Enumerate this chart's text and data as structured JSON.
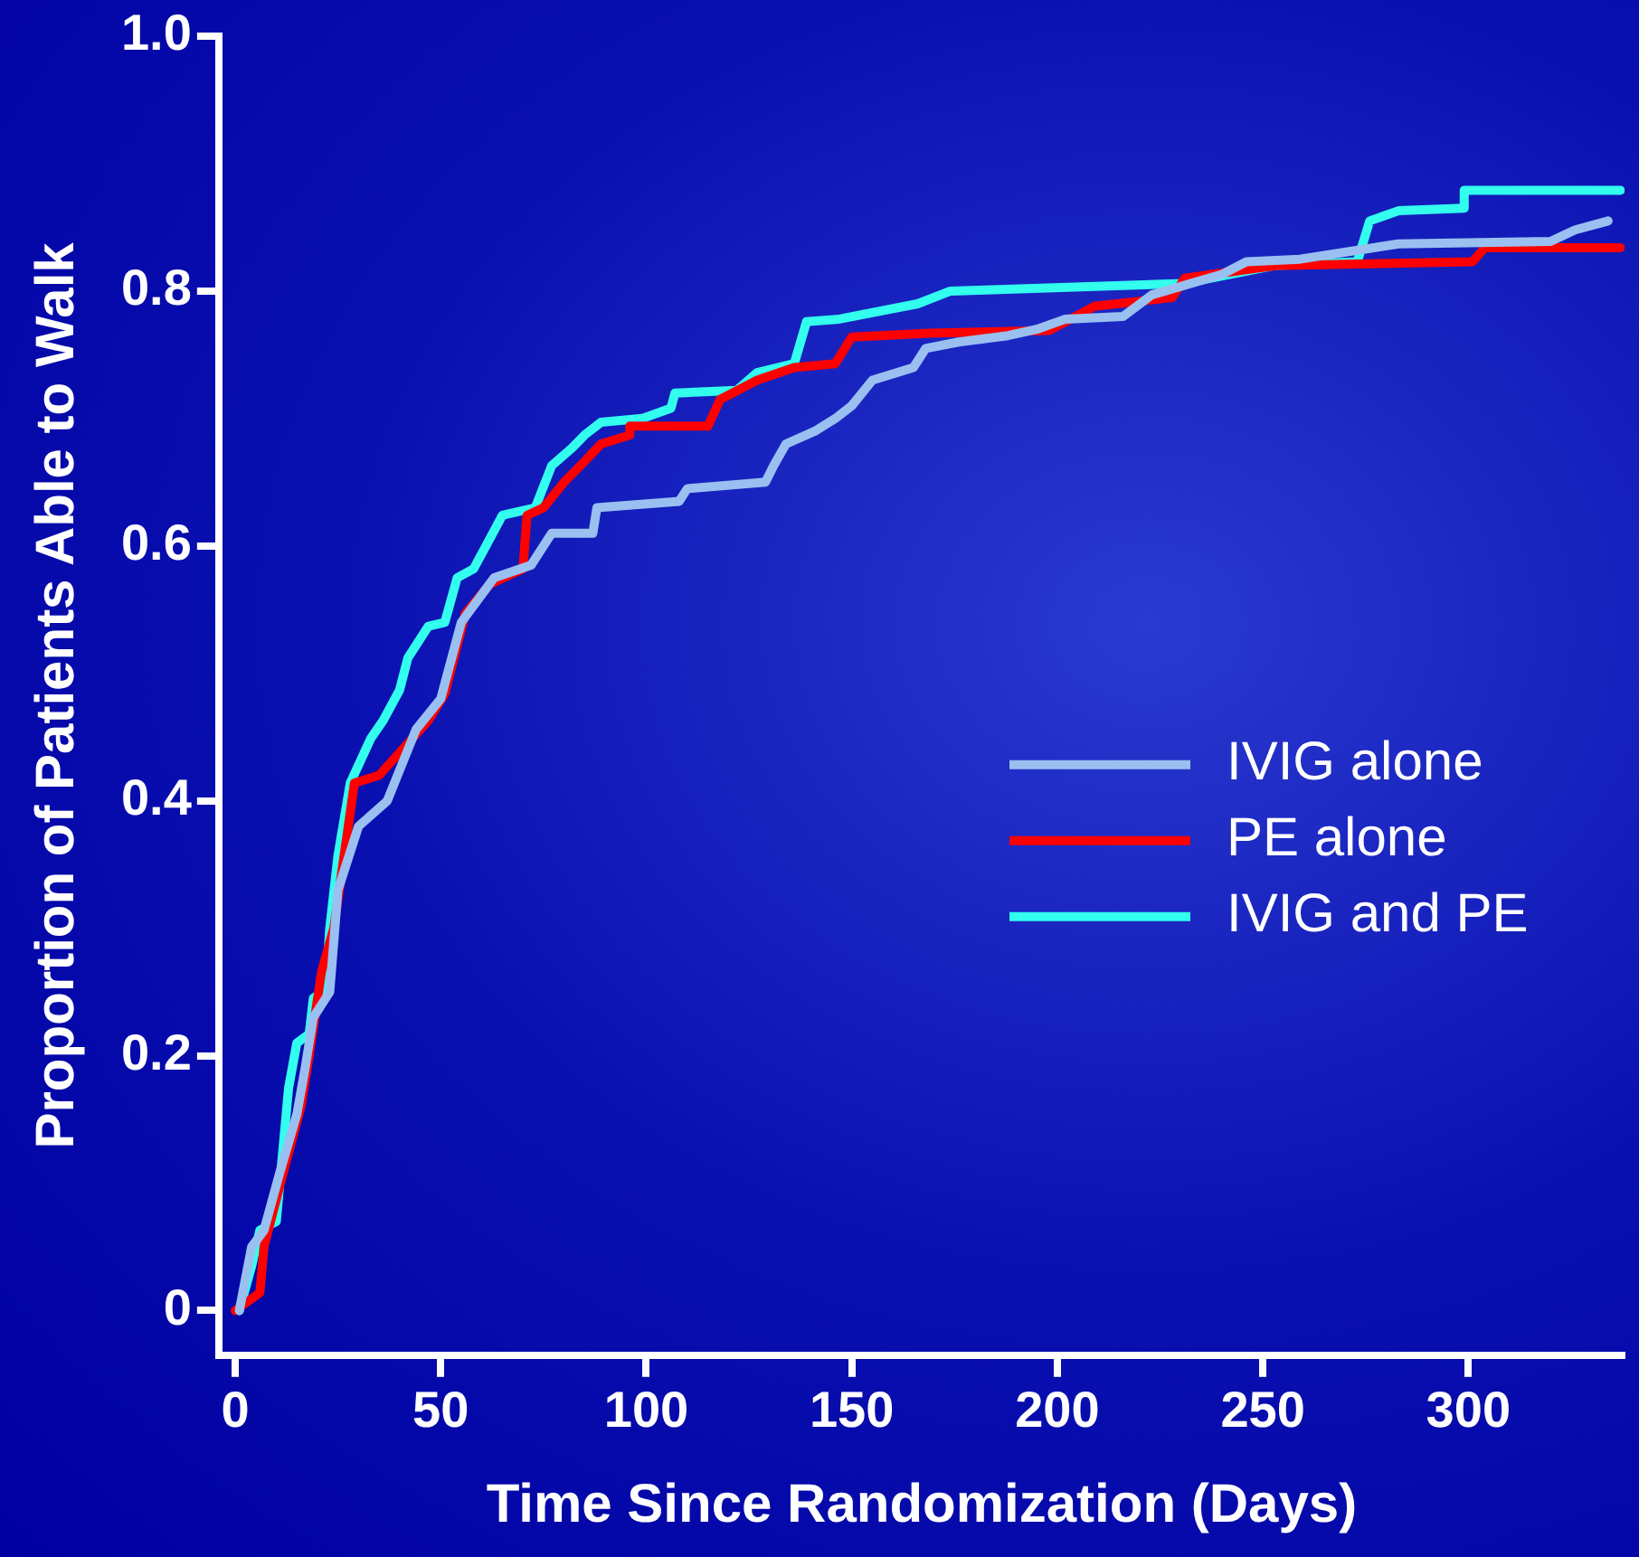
{
  "chart_data": {
    "type": "line",
    "xlabel": "Time Since Randomization (Days)",
    "ylabel": "Proportion of Patients Able to Walk",
    "xlim": [
      -4,
      338
    ],
    "ylim": [
      -0.035,
      1.0
    ],
    "xticks": [
      0,
      50,
      100,
      150,
      200,
      250,
      300
    ],
    "yticks": [
      {
        "value": 0,
        "label": "0"
      },
      {
        "value": 0.2,
        "label": "0.2"
      },
      {
        "value": 0.4,
        "label": "0.4"
      },
      {
        "value": 0.6,
        "label": "0.6"
      },
      {
        "value": 0.8,
        "label": "0.8"
      },
      {
        "value": 1.0,
        "label": "1.0"
      }
    ],
    "grid": false,
    "legend": "right",
    "marker": "none",
    "line_style": "solid",
    "series": [
      {
        "name": "IVIG alone",
        "color": "#99c0f0",
        "x": [
          1,
          4,
          7,
          11,
          15,
          17,
          19,
          23,
          25,
          30,
          37,
          44,
          50,
          55,
          63,
          72,
          77,
          87,
          88,
          108,
          110,
          129,
          131,
          134,
          141,
          146,
          150,
          155,
          165,
          168,
          176,
          188,
          195,
          202,
          216,
          223,
          240,
          246,
          259,
          283,
          320,
          326,
          334
        ],
        "values": [
          0,
          0.05,
          0.063,
          0.11,
          0.154,
          0.19,
          0.23,
          0.25,
          0.33,
          0.38,
          0.4,
          0.456,
          0.48,
          0.54,
          0.575,
          0.585,
          0.61,
          0.61,
          0.63,
          0.635,
          0.645,
          0.65,
          0.663,
          0.68,
          0.69,
          0.7,
          0.71,
          0.73,
          0.74,
          0.755,
          0.76,
          0.765,
          0.77,
          0.778,
          0.78,
          0.797,
          0.813,
          0.823,
          0.825,
          0.837,
          0.839,
          0.848,
          0.855
        ]
      },
      {
        "name": "PE alone",
        "color": "#ff0000",
        "x": [
          0,
          6,
          7,
          11,
          16,
          18,
          21,
          24,
          29,
          35,
          42,
          47,
          51,
          56,
          62,
          70,
          71,
          75,
          80,
          84,
          89,
          96,
          96,
          115,
          118,
          127,
          136,
          146,
          150,
          169,
          198,
          209,
          228,
          231,
          253,
          301,
          304,
          337
        ],
        "values": [
          0,
          0.014,
          0.05,
          0.1,
          0.16,
          0.2,
          0.266,
          0.3,
          0.414,
          0.42,
          0.445,
          0.463,
          0.484,
          0.547,
          0.57,
          0.582,
          0.624,
          0.63,
          0.65,
          0.663,
          0.68,
          0.687,
          0.694,
          0.694,
          0.715,
          0.73,
          0.74,
          0.743,
          0.764,
          0.767,
          0.769,
          0.788,
          0.795,
          0.81,
          0.82,
          0.823,
          0.834,
          0.834
        ]
      },
      {
        "name": "IVIG and PE",
        "color": "#33ffee",
        "x": [
          1,
          4,
          6,
          10,
          13,
          15,
          18,
          19,
          22,
          23,
          25,
          28,
          33,
          36,
          40,
          42,
          47,
          51,
          54,
          58,
          61,
          65,
          73,
          77,
          82,
          85,
          89,
          99,
          106,
          107,
          122,
          127,
          136,
          139,
          147,
          166,
          174,
          231,
          253,
          273,
          276,
          283,
          299,
          299,
          337
        ],
        "values": [
          0,
          0.035,
          0.063,
          0.07,
          0.175,
          0.21,
          0.217,
          0.245,
          0.252,
          0.3,
          0.357,
          0.414,
          0.449,
          0.463,
          0.487,
          0.512,
          0.537,
          0.54,
          0.575,
          0.582,
          0.6,
          0.624,
          0.63,
          0.663,
          0.677,
          0.687,
          0.697,
          0.7,
          0.708,
          0.72,
          0.722,
          0.736,
          0.743,
          0.776,
          0.778,
          0.79,
          0.8,
          0.806,
          0.82,
          0.823,
          0.855,
          0.863,
          0.865,
          0.879,
          0.879
        ]
      }
    ]
  }
}
